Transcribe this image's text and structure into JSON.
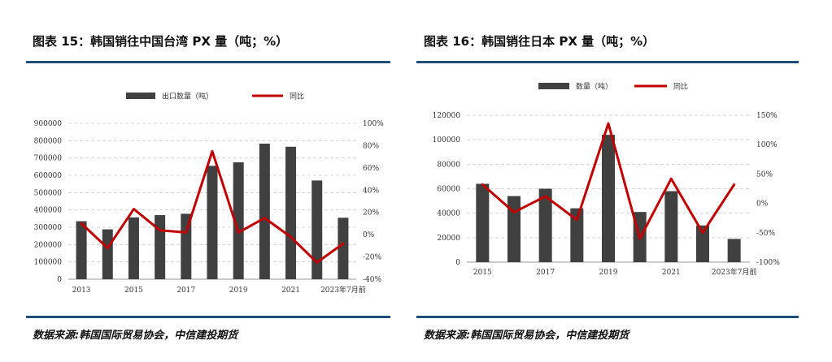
{
  "panels": [
    {
      "title": "图表 15：韩国销往中国台湾 PX 量（吨；%）",
      "source": "数据来源:韩国国际贸易协会，中信建投期货"
    },
    {
      "title": "图表 16：韩国销往日本 PX 量（吨；%）",
      "source": "数据来源:韩国国际贸易协会，中信建投期货"
    }
  ],
  "colors": {
    "bar": "#404040",
    "line": "#c00000",
    "rule": "#1f4e79",
    "grid": "#d4d4d4"
  },
  "chart_data": [
    {
      "type": "bar+line",
      "title": "韩国销往中国台湾 PX 量（吨；%）",
      "categories": [
        "2013",
        "2014",
        "2015",
        "2016",
        "2017",
        "2018",
        "2019",
        "2020",
        "2021",
        "2022",
        "2023年7月前"
      ],
      "x_tick_labels": [
        "2013",
        "2015",
        "2017",
        "2019",
        "2021",
        "2023年7月前"
      ],
      "series": [
        {
          "name": "出口数量（吨）",
          "type": "bar",
          "axis": "left",
          "values": [
            335000,
            288000,
            357000,
            370000,
            378000,
            655000,
            675000,
            783000,
            765000,
            570000,
            355000
          ]
        },
        {
          "name": "同比",
          "type": "line",
          "axis": "right",
          "values": [
            10,
            -12,
            23,
            4,
            2,
            75,
            2,
            15,
            -2,
            -25,
            -8
          ]
        }
      ],
      "ylim_left": [
        0,
        900000
      ],
      "yticks_left": [
        "0",
        "100000",
        "200000",
        "300000",
        "400000",
        "500000",
        "600000",
        "700000",
        "800000",
        "900000"
      ],
      "ylim_right": [
        -40,
        100
      ],
      "yticks_right": [
        "-40%",
        "-20%",
        "0%",
        "20%",
        "40%",
        "60%",
        "80%",
        "100%"
      ],
      "legend_position": "top-center",
      "grid": true
    },
    {
      "type": "bar+line",
      "title": "韩国销往日本 PX 量（吨；%）",
      "categories": [
        "2015",
        "2016",
        "2017",
        "2018",
        "2019",
        "2020",
        "2021",
        "2022",
        "2023年7月前"
      ],
      "x_tick_labels": [
        "2015",
        "2017",
        "2019",
        "2021",
        "2023年7月前"
      ],
      "series": [
        {
          "name": "数量（吨）",
          "type": "bar",
          "axis": "left",
          "values": [
            64000,
            54000,
            60000,
            44000,
            104000,
            41000,
            58000,
            30000,
            19000
          ]
        },
        {
          "name": "同比",
          "type": "line",
          "axis": "right",
          "values": [
            32,
            -15,
            12,
            -28,
            136,
            -60,
            42,
            -50,
            32
          ]
        }
      ],
      "ylim_left": [
        0,
        120000
      ],
      "yticks_left": [
        "0",
        "20000",
        "40000",
        "60000",
        "80000",
        "100000",
        "120000"
      ],
      "ylim_right": [
        -100,
        150
      ],
      "yticks_right": [
        "-100%",
        "-50%",
        "0%",
        "50%",
        "100%",
        "150%"
      ],
      "legend_position": "top-center",
      "grid": true
    }
  ]
}
